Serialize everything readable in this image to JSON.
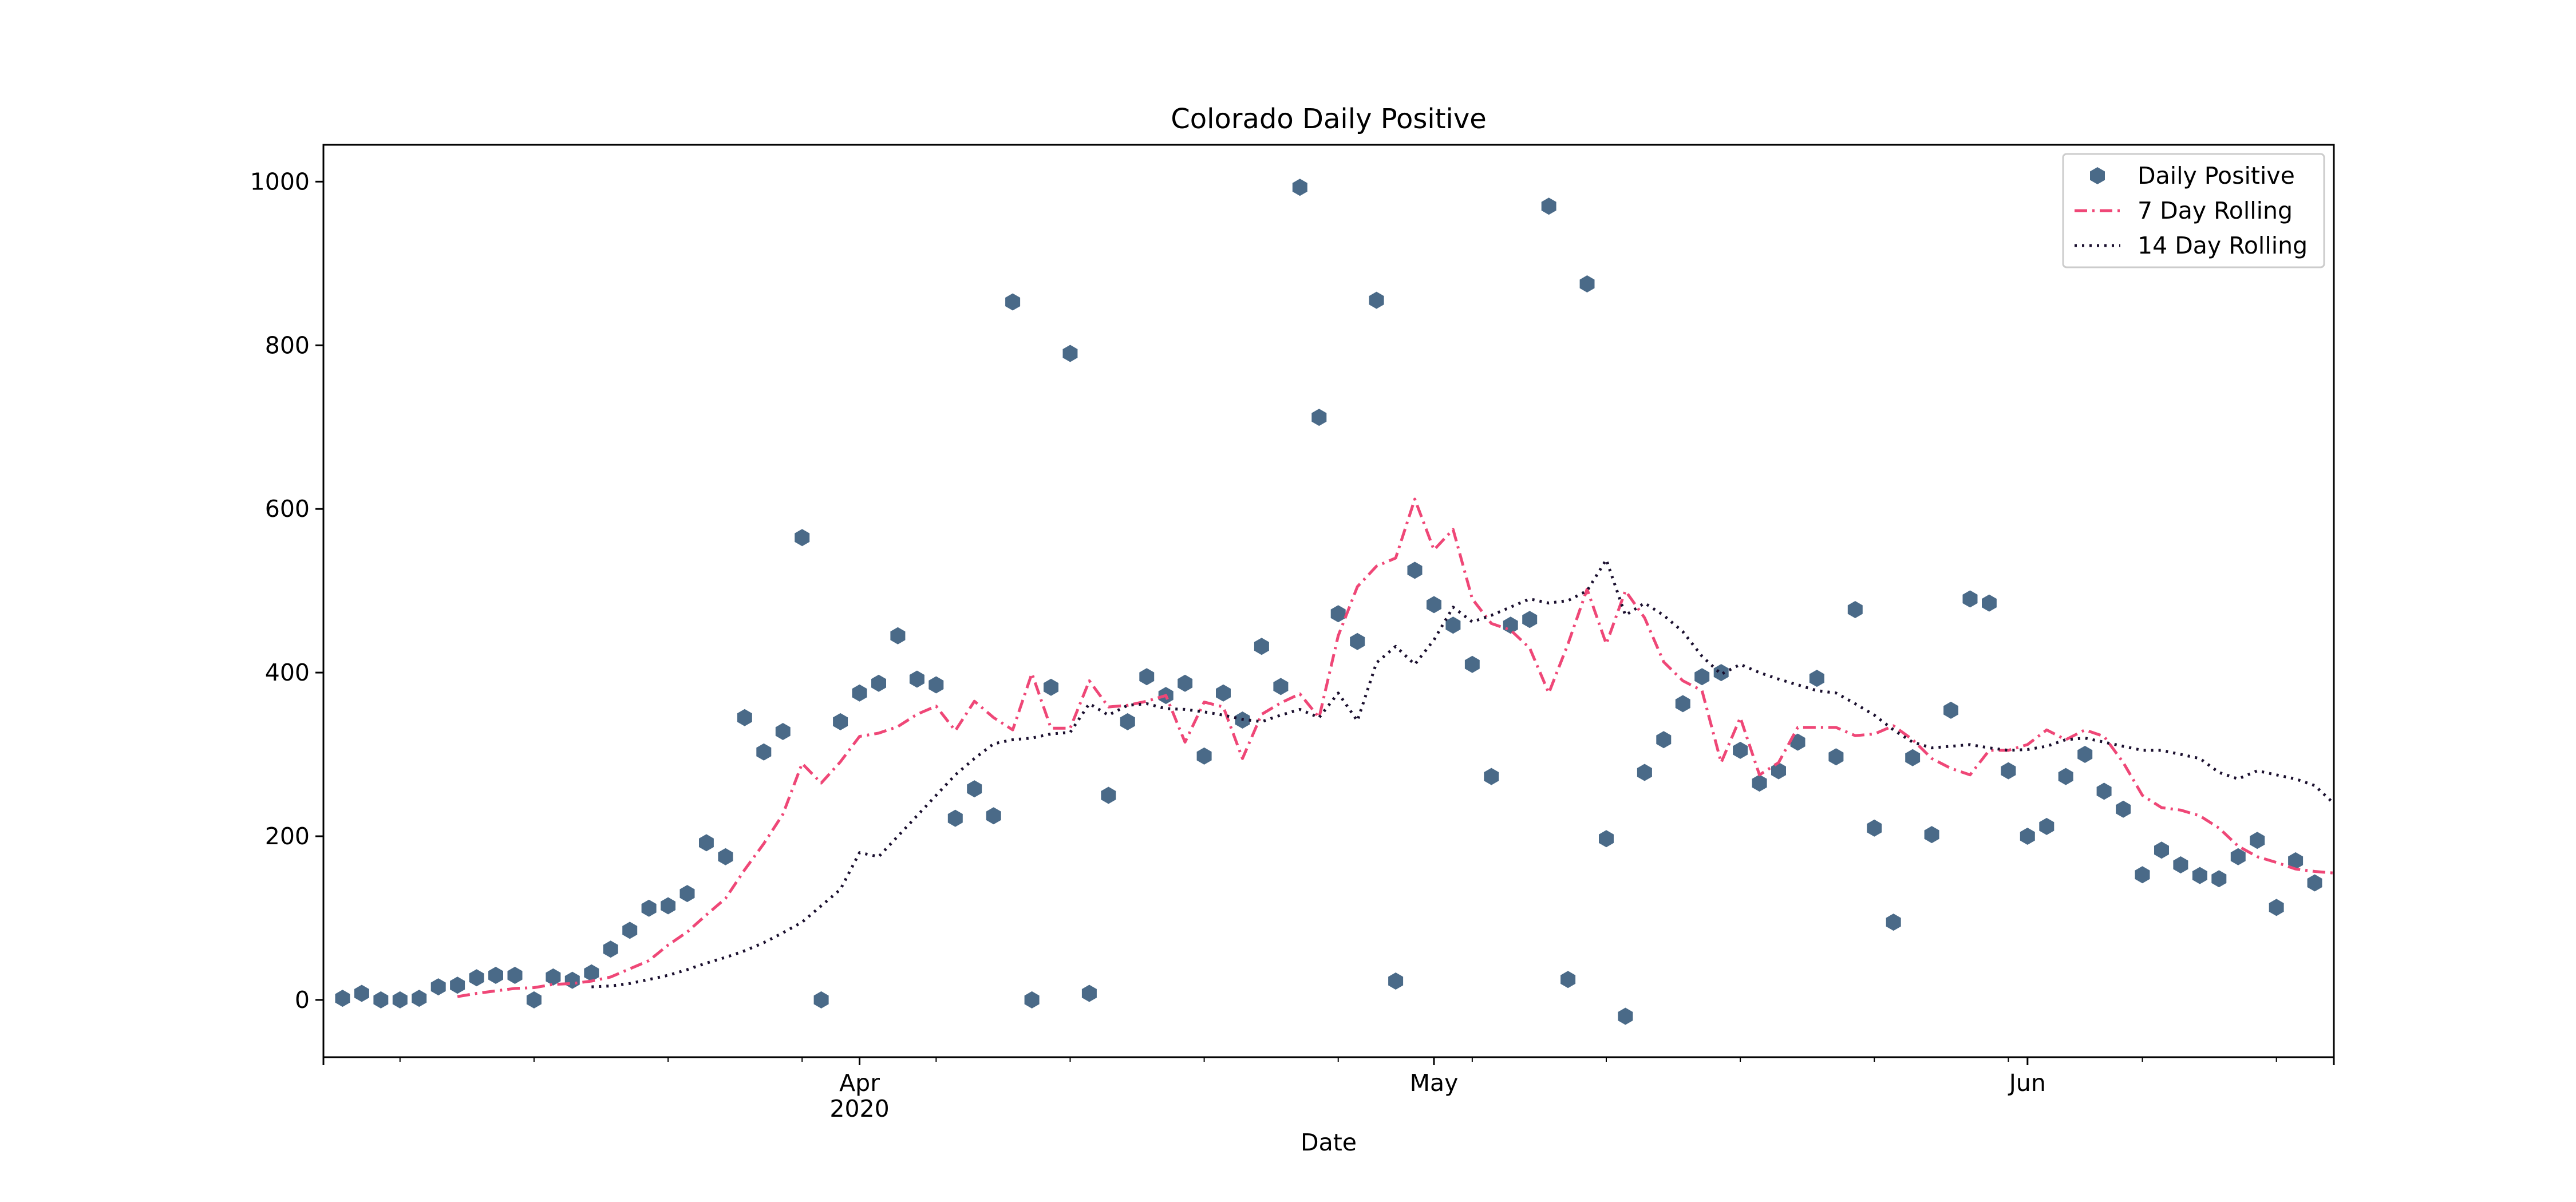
{
  "chart_data": {
    "type": "scatter",
    "title": "Colorado Daily Positive",
    "xlabel": "Date",
    "ylabel": "",
    "x_range": [
      "2020-03-04",
      "2020-06-17"
    ],
    "ylim": [
      -70,
      1045
    ],
    "x_ticks": [
      {
        "date": "2020-04-01",
        "label": "Apr",
        "sublabel": "2020"
      },
      {
        "date": "2020-05-01",
        "label": "May",
        "sublabel": ""
      },
      {
        "date": "2020-06-01",
        "label": "Jun",
        "sublabel": ""
      }
    ],
    "y_ticks": [
      0,
      200,
      400,
      600,
      800,
      1000
    ],
    "grid": false,
    "legend_position": "top-right",
    "series": [
      {
        "name": "Daily Positive",
        "kind": "points",
        "color": "#4a6a88",
        "start_date": "2020-03-05",
        "values": [
          2,
          8,
          0,
          0,
          2,
          16,
          18,
          27,
          30,
          30,
          0,
          28,
          24,
          33,
          62,
          85,
          112,
          115,
          130,
          192,
          175,
          345,
          303,
          328,
          565,
          0,
          340,
          375,
          387,
          445,
          392,
          385,
          222,
          258,
          225,
          853,
          0,
          382,
          790,
          8,
          250,
          340,
          395,
          372,
          387,
          298,
          375,
          342,
          432,
          383,
          993,
          712,
          472,
          438,
          855,
          23,
          525,
          483,
          458,
          410,
          273,
          458,
          465,
          970,
          25,
          875,
          197,
          -20,
          278,
          318,
          362,
          395,
          400,
          305,
          265,
          280,
          315,
          393,
          297,
          477,
          210,
          95,
          296,
          202,
          354,
          490,
          485,
          280,
          200,
          212,
          273,
          300,
          255,
          233,
          153,
          183,
          165,
          152,
          148,
          175,
          195,
          113,
          170,
          143
        ]
      },
      {
        "name": "7 Day Rolling",
        "kind": "line",
        "style": "dashdot",
        "color": "#ef4777",
        "start_date": "2020-03-11",
        "values": [
          4,
          8,
          11,
          14,
          15,
          19,
          20,
          23,
          28,
          38,
          48,
          67,
          83,
          104,
          124,
          159,
          191,
          227,
          289,
          265,
          291,
          322,
          326,
          334,
          349,
          359,
          329,
          365,
          345,
          330,
          399,
          332,
          332,
          390,
          358,
          360,
          365,
          372,
          315,
          364,
          358,
          295,
          349,
          363,
          374,
          345,
          445,
          505,
          530,
          540,
          612,
          550,
          575,
          490,
          460,
          452,
          430,
          375,
          435,
          502,
          435,
          500,
          467,
          413,
          390,
          378,
          290,
          345,
          275,
          290,
          333,
          333,
          333,
          323,
          325,
          335,
          318,
          295,
          283,
          275,
          305,
          305,
          312,
          330,
          318,
          330,
          322,
          290,
          250,
          235,
          232,
          225,
          210,
          188,
          175,
          168,
          160,
          157,
          155
        ]
      },
      {
        "name": "14 Day Rolling",
        "kind": "line",
        "style": "dotted",
        "color": "#1a0f2e",
        "start_date": "2020-03-18",
        "values": [
          16,
          17,
          20,
          25,
          30,
          37,
          45,
          52,
          60,
          70,
          82,
          95,
          115,
          135,
          180,
          175,
          200,
          225,
          250,
          275,
          295,
          313,
          318,
          320,
          325,
          327,
          362,
          348,
          360,
          362,
          356,
          355,
          352,
          348,
          343,
          340,
          348,
          355,
          345,
          375,
          341,
          412,
          432,
          410,
          440,
          480,
          462,
          470,
          480,
          490,
          485,
          488,
          500,
          538,
          470,
          485,
          470,
          450,
          420,
          398,
          410,
          400,
          392,
          385,
          378,
          375,
          362,
          348,
          330,
          315,
          308,
          310,
          312,
          308,
          305,
          306,
          310,
          318,
          320,
          315,
          310,
          305,
          305,
          300,
          295,
          278,
          270,
          280,
          275,
          270,
          262,
          240,
          215,
          198,
          192,
          190
        ]
      }
    ]
  }
}
